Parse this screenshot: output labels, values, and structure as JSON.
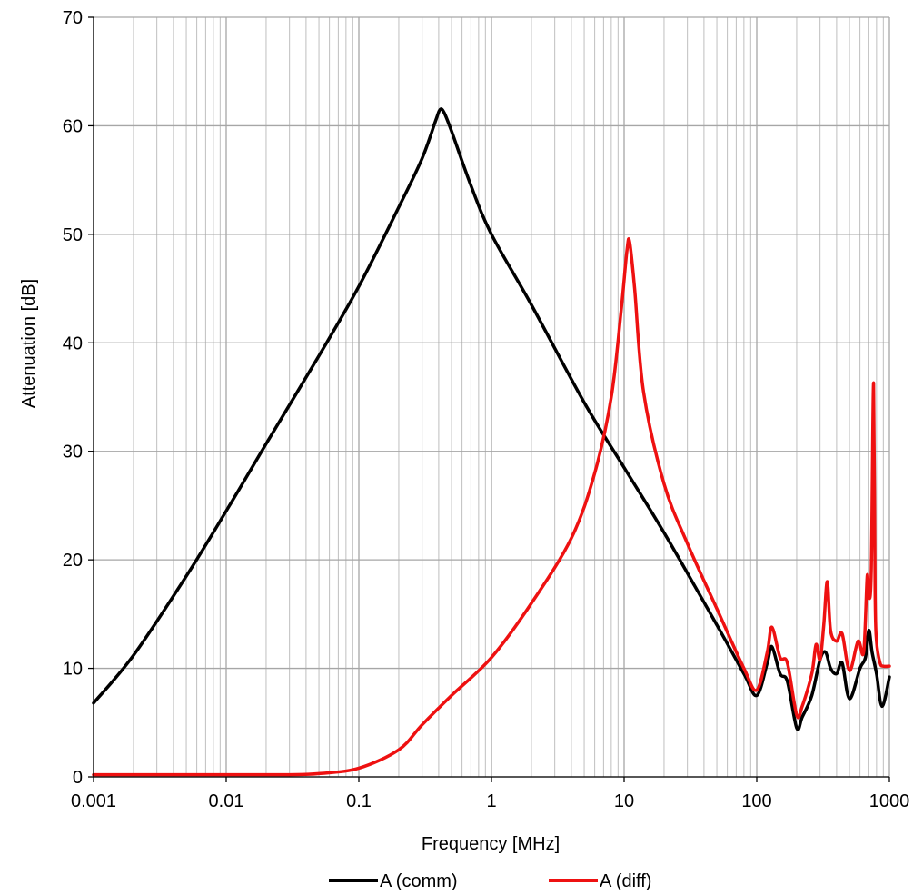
{
  "chart_data": {
    "type": "line",
    "xlabel": "Frequency [MHz]",
    "ylabel": "Attenuation [dB]",
    "x_scale": "log",
    "xlim": [
      0.001,
      1000
    ],
    "ylim": [
      0,
      70
    ],
    "x_ticks": [
      0.001,
      0.01,
      0.1,
      1,
      10,
      100,
      1000
    ],
    "x_tick_labels": [
      "0.001",
      "0.01",
      "0.1",
      "1",
      "10",
      "100",
      "1000"
    ],
    "y_ticks": [
      0,
      10,
      20,
      30,
      40,
      50,
      60,
      70
    ],
    "y_tick_labels": [
      "0",
      "10",
      "20",
      "30",
      "40",
      "50",
      "60",
      "70"
    ],
    "grid": true,
    "legend_position": "bottom",
    "series": [
      {
        "name": "A (comm)",
        "color": "#000000",
        "x": [
          0.001,
          0.002,
          0.005,
          0.01,
          0.02,
          0.05,
          0.1,
          0.2,
          0.3,
          0.38,
          0.41,
          0.44,
          0.5,
          0.7,
          1,
          2,
          5,
          10,
          20,
          50,
          80,
          100,
          120,
          130,
          150,
          170,
          200,
          220,
          260,
          300,
          330,
          360,
          400,
          440,
          500,
          600,
          660,
          700,
          740,
          800,
          880,
          1000
        ],
        "y": [
          6.8,
          11.2,
          18.5,
          24.5,
          30.7,
          38.8,
          45.2,
          52.5,
          57.0,
          60.5,
          61.5,
          61.2,
          59.5,
          54.5,
          50.0,
          43.5,
          34.5,
          28.5,
          22.5,
          14.0,
          9.5,
          7.5,
          10.5,
          12.0,
          9.5,
          8.8,
          4.5,
          5.5,
          7.5,
          10.8,
          11.5,
          10.0,
          9.5,
          10.5,
          7.2,
          10.0,
          11.0,
          13.5,
          11.5,
          9.5,
          6.5,
          9.2
        ]
      },
      {
        "name": "A (diff)",
        "color": "#ee1111",
        "x": [
          0.001,
          0.01,
          0.03,
          0.05,
          0.1,
          0.2,
          0.3,
          0.5,
          1,
          2,
          4,
          6,
          8,
          9.5,
          10.5,
          11,
          12,
          14,
          20,
          30,
          50,
          80,
          100,
          120,
          130,
          150,
          170,
          200,
          220,
          260,
          280,
          300,
          320,
          340,
          360,
          400,
          440,
          500,
          580,
          640,
          680,
          700,
          730,
          760,
          780,
          800,
          850,
          900,
          1000
        ],
        "y": [
          0.2,
          0.2,
          0.2,
          0.3,
          0.8,
          2.5,
          4.8,
          7.5,
          11.0,
          16.0,
          22.0,
          28.0,
          35.0,
          43.0,
          48.5,
          49.3,
          45.0,
          35.5,
          27.0,
          21.5,
          15.5,
          10.0,
          8.0,
          11.5,
          13.8,
          11.0,
          10.5,
          5.7,
          6.5,
          9.5,
          12.2,
          10.8,
          14.0,
          18.0,
          13.5,
          12.5,
          13.2,
          9.8,
          12.5,
          11.5,
          18.5,
          16.5,
          19.0,
          36.3,
          17.0,
          12.5,
          10.5,
          10.2,
          10.2
        ]
      }
    ]
  }
}
